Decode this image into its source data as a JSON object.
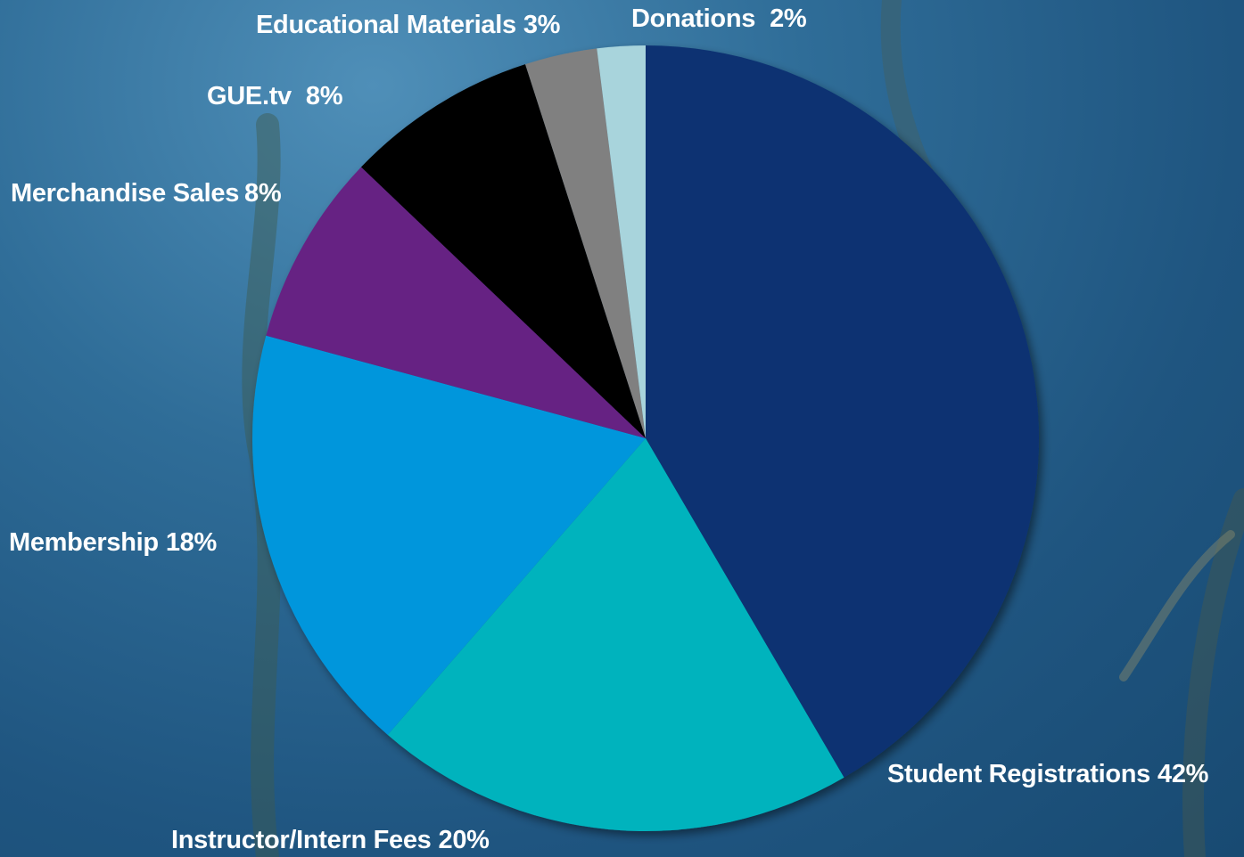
{
  "chart_data": {
    "type": "pie",
    "categories": [
      "Student Registrations",
      "Instructor/Intern Fees",
      "Membership",
      "Merchandise Sales",
      "GUE.tv",
      "Educational Materials",
      "Donations"
    ],
    "values": [
      42,
      20,
      18,
      8,
      8,
      3,
      2
    ],
    "value_labels": [
      "42%",
      "20%",
      "18%",
      "8%",
      "8%",
      "3%",
      "2%"
    ],
    "colors": [
      "#0b3372",
      "#00b3bd",
      "#0096dc",
      "#662483",
      "#000000",
      "#808080",
      "#a8d4dc"
    ]
  }
}
